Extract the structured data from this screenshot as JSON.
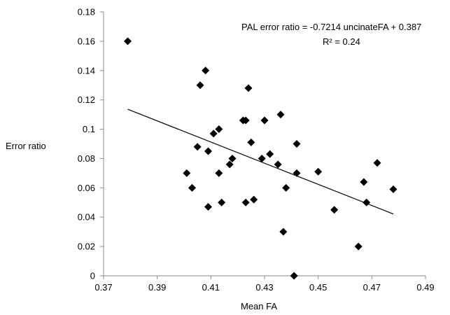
{
  "chart_data": {
    "type": "scatter",
    "title": "",
    "xlabel": "Mean FA",
    "ylabel": "Error ratio",
    "xlim": [
      0.37,
      0.49
    ],
    "ylim": [
      0,
      0.18
    ],
    "xticks": [
      "0.37",
      "0.39",
      "0.41",
      "0.43",
      "0.45",
      "0.47",
      "0.49"
    ],
    "yticks": [
      "0",
      "0.02",
      "0.04",
      "0.06",
      "0.08",
      "0.1",
      "0.12",
      "0.14",
      "0.16",
      "0.18"
    ],
    "grid": false,
    "marker": "diamond",
    "marker_color": "#000000",
    "annotation": {
      "equation": "PAL error ratio  = -0.7214 uncinateFA  + 0.387",
      "r_squared": "R² = 0.24"
    },
    "trendline": {
      "slope": -0.7214,
      "intercept": 0.387,
      "x_range": [
        0.379,
        0.478
      ]
    },
    "points": [
      [
        0.379,
        0.16
      ],
      [
        0.401,
        0.07
      ],
      [
        0.403,
        0.06
      ],
      [
        0.405,
        0.088
      ],
      [
        0.406,
        0.13
      ],
      [
        0.408,
        0.14
      ],
      [
        0.409,
        0.085
      ],
      [
        0.409,
        0.047
      ],
      [
        0.411,
        0.097
      ],
      [
        0.413,
        0.1
      ],
      [
        0.413,
        0.07
      ],
      [
        0.414,
        0.05
      ],
      [
        0.417,
        0.076
      ],
      [
        0.418,
        0.08
      ],
      [
        0.422,
        0.106
      ],
      [
        0.423,
        0.05
      ],
      [
        0.423,
        0.106
      ],
      [
        0.424,
        0.128
      ],
      [
        0.425,
        0.091
      ],
      [
        0.426,
        0.052
      ],
      [
        0.429,
        0.08
      ],
      [
        0.43,
        0.106
      ],
      [
        0.432,
        0.083
      ],
      [
        0.435,
        0.076
      ],
      [
        0.436,
        0.11
      ],
      [
        0.437,
        0.03
      ],
      [
        0.438,
        0.06
      ],
      [
        0.441,
        0.0
      ],
      [
        0.442,
        0.09
      ],
      [
        0.442,
        0.07
      ],
      [
        0.45,
        0.071
      ],
      [
        0.456,
        0.045
      ],
      [
        0.465,
        0.02
      ],
      [
        0.467,
        0.064
      ],
      [
        0.468,
        0.05
      ],
      [
        0.472,
        0.077
      ],
      [
        0.478,
        0.059
      ]
    ]
  }
}
